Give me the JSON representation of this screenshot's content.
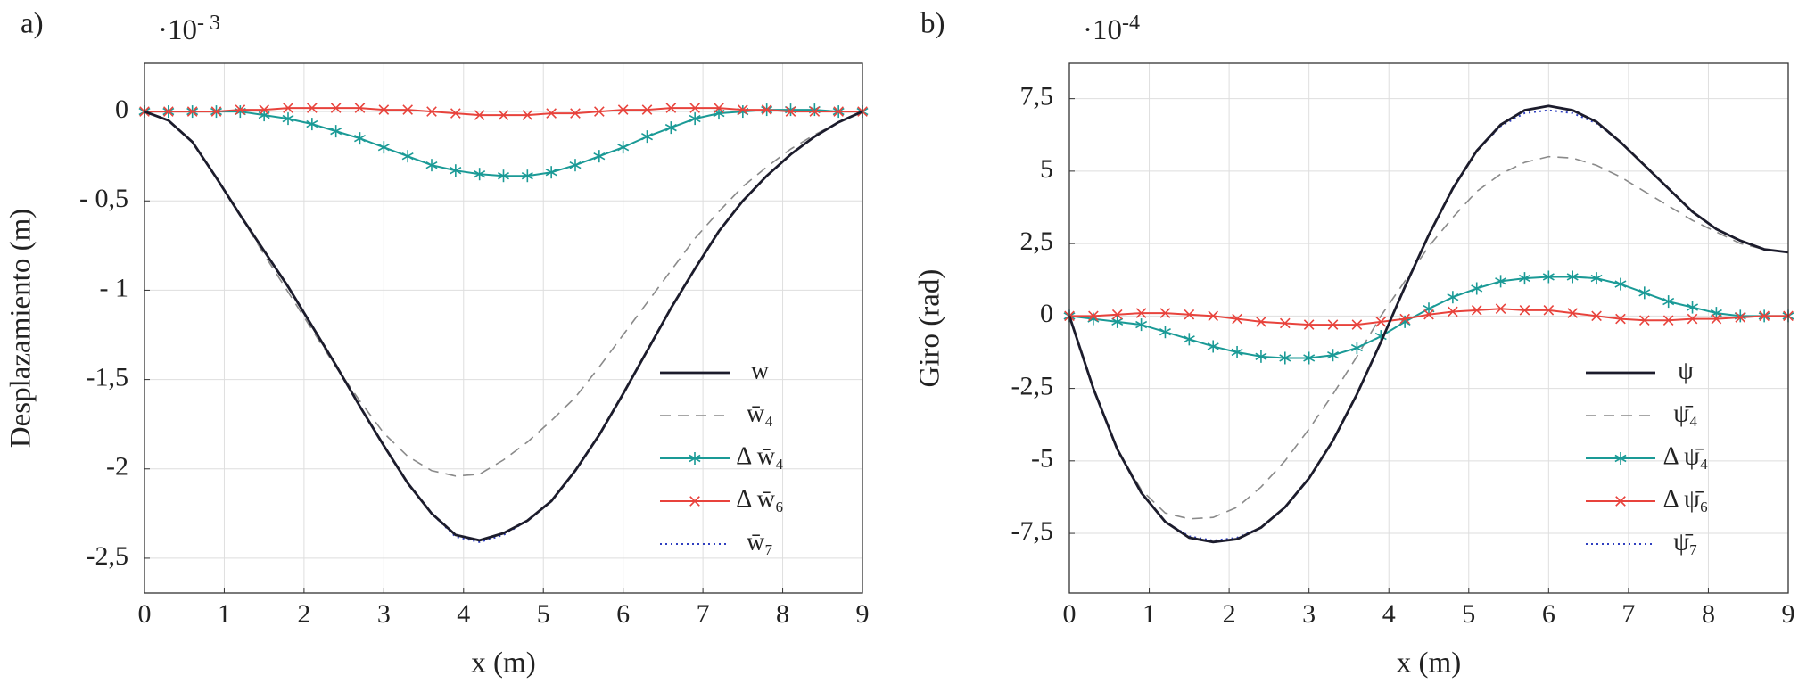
{
  "chart_data": [
    {
      "type": "line",
      "panel_label": "a)",
      "exponent": {
        "base": "·10",
        "power": "- 3"
      },
      "xlabel": "x (m)",
      "ylabel": "Desplazamiento (m)",
      "x": [
        0,
        0.3,
        0.6,
        0.9,
        1.2,
        1.5,
        1.8,
        2.1,
        2.4,
        2.7,
        3.0,
        3.3,
        3.6,
        3.9,
        4.2,
        4.5,
        4.8,
        5.1,
        5.4,
        5.7,
        6.0,
        6.3,
        6.6,
        6.9,
        7.2,
        7.5,
        7.8,
        8.1,
        8.4,
        8.7,
        9.0
      ],
      "xlim": [
        0,
        9
      ],
      "xticks": [
        0,
        1,
        2,
        3,
        4,
        5,
        6,
        7,
        8,
        9
      ],
      "ylim": [
        -2.695,
        0.27
      ],
      "yticks": [
        0,
        {
          "value": -0.5,
          "label": "- 0,5"
        },
        {
          "value": -1,
          "label": "- 1"
        },
        {
          "value": -1.5,
          "label": "-1,5"
        },
        {
          "value": -2,
          "label": "-2"
        },
        {
          "value": -2.5,
          "label": "-2,5"
        }
      ],
      "grid": true,
      "legend": "lower right",
      "series": [
        {
          "name": "w",
          "color": "#1c1c2c",
          "linestyle": "solid",
          "values": [
            0,
            -0.05,
            -0.17,
            -0.37,
            -0.58,
            -0.78,
            -0.98,
            -1.2,
            -1.42,
            -1.65,
            -1.87,
            -2.08,
            -2.25,
            -2.37,
            -2.4,
            -2.36,
            -2.29,
            -2.18,
            -2.01,
            -1.81,
            -1.58,
            -1.34,
            -1.1,
            -0.88,
            -0.67,
            -0.5,
            -0.36,
            -0.24,
            -0.14,
            -0.06,
            0
          ]
        },
        {
          "name": "w̄₄",
          "color": "#8a8a8a",
          "linestyle": "dashed",
          "values": [
            0,
            -0.05,
            -0.17,
            -0.37,
            -0.58,
            -0.8,
            -1.01,
            -1.22,
            -1.43,
            -1.62,
            -1.8,
            -1.93,
            -2.01,
            -2.04,
            -2.03,
            -1.95,
            -1.85,
            -1.73,
            -1.6,
            -1.43,
            -1.25,
            -1.07,
            -0.89,
            -0.71,
            -0.56,
            -0.42,
            -0.31,
            -0.21,
            -0.13,
            -0.06,
            0
          ]
        },
        {
          "name": "Δ w̄₄",
          "color": "#1a9a96",
          "linestyle": "solid",
          "marker": "asterisk",
          "values": [
            0,
            0,
            0,
            0,
            0,
            -0.02,
            -0.04,
            -0.07,
            -0.11,
            -0.15,
            -0.2,
            -0.25,
            -0.3,
            -0.33,
            -0.35,
            -0.36,
            -0.36,
            -0.34,
            -0.3,
            -0.25,
            -0.2,
            -0.14,
            -0.09,
            -0.04,
            -0.01,
            0,
            0.01,
            0.01,
            0.01,
            0,
            0
          ]
        },
        {
          "name": "Δ w̄₆",
          "color": "#e8433c",
          "linestyle": "solid",
          "marker": "x",
          "values": [
            0,
            0,
            0,
            0,
            0.01,
            0.01,
            0.02,
            0.02,
            0.02,
            0.02,
            0.01,
            0.01,
            0,
            -0.01,
            -0.02,
            -0.02,
            -0.02,
            -0.01,
            -0.01,
            0,
            0.01,
            0.01,
            0.02,
            0.02,
            0.02,
            0.01,
            0.01,
            0,
            0,
            0,
            0
          ]
        },
        {
          "name": "w̄₇",
          "color": "#2f3fbf",
          "linestyle": "dotted",
          "values": [
            0,
            -0.05,
            -0.17,
            -0.37,
            -0.58,
            -0.78,
            -0.98,
            -1.2,
            -1.42,
            -1.65,
            -1.87,
            -2.08,
            -2.25,
            -2.38,
            -2.41,
            -2.37,
            -2.29,
            -2.18,
            -2.01,
            -1.81,
            -1.58,
            -1.34,
            -1.1,
            -0.88,
            -0.67,
            -0.5,
            -0.36,
            -0.24,
            -0.14,
            -0.06,
            0
          ]
        }
      ]
    },
    {
      "type": "line",
      "panel_label": "b)",
      "exponent": {
        "base": "·10",
        "power": "-4"
      },
      "xlabel": "x (m)",
      "ylabel": "Giro (rad)",
      "x": [
        0,
        0.3,
        0.6,
        0.9,
        1.2,
        1.5,
        1.8,
        2.1,
        2.4,
        2.7,
        3.0,
        3.3,
        3.6,
        3.9,
        4.2,
        4.5,
        4.8,
        5.1,
        5.4,
        5.7,
        6.0,
        6.3,
        6.6,
        6.9,
        7.2,
        7.5,
        7.8,
        8.1,
        8.4,
        8.7,
        9.0
      ],
      "xlim": [
        0,
        9
      ],
      "xticks": [
        0,
        1,
        2,
        3,
        4,
        5,
        6,
        7,
        8,
        9
      ],
      "ylim": [
        -9.56,
        8.72
      ],
      "yticks": [
        {
          "value": 7.5,
          "label": "7,5"
        },
        5,
        {
          "value": 2.5,
          "label": "2,5"
        },
        0,
        {
          "value": -2.5,
          "label": "-2,5"
        },
        -5,
        {
          "value": -7.5,
          "label": "-7,5"
        }
      ],
      "grid": true,
      "legend": "lower right",
      "series": [
        {
          "name": "ψ",
          "color": "#1c1c2c",
          "linestyle": "solid",
          "values": [
            0,
            -2.5,
            -4.6,
            -6.1,
            -7.1,
            -7.65,
            -7.8,
            -7.7,
            -7.3,
            -6.6,
            -5.6,
            -4.3,
            -2.7,
            -0.9,
            1.0,
            2.8,
            4.4,
            5.7,
            6.6,
            7.1,
            7.25,
            7.1,
            6.7,
            6.0,
            5.2,
            4.4,
            3.6,
            3.0,
            2.6,
            2.3,
            2.2
          ]
        },
        {
          "name": "ψ̄₄",
          "color": "#8a8a8a",
          "linestyle": "dashed",
          "values": [
            0,
            -2.5,
            -4.6,
            -6.0,
            -6.8,
            -7.0,
            -6.95,
            -6.6,
            -5.9,
            -5.0,
            -3.9,
            -2.7,
            -1.4,
            0.0,
            1.2,
            2.4,
            3.4,
            4.3,
            4.9,
            5.3,
            5.5,
            5.45,
            5.2,
            4.8,
            4.3,
            3.8,
            3.3,
            2.9,
            2.5,
            2.3,
            2.2
          ]
        },
        {
          "name": "Δ ψ̄₄",
          "color": "#1a9a96",
          "linestyle": "solid",
          "marker": "asterisk",
          "values": [
            0,
            -0.1,
            -0.2,
            -0.3,
            -0.55,
            -0.8,
            -1.05,
            -1.25,
            -1.4,
            -1.45,
            -1.45,
            -1.35,
            -1.1,
            -0.7,
            -0.2,
            0.25,
            0.65,
            0.95,
            1.2,
            1.3,
            1.35,
            1.35,
            1.3,
            1.1,
            0.8,
            0.5,
            0.3,
            0.1,
            0,
            0,
            0
          ]
        },
        {
          "name": "Δ ψ̄₆",
          "color": "#e8433c",
          "linestyle": "solid",
          "marker": "x",
          "values": [
            0,
            0,
            0.05,
            0.1,
            0.1,
            0.05,
            0,
            -0.1,
            -0.2,
            -0.25,
            -0.3,
            -0.3,
            -0.3,
            -0.2,
            -0.1,
            0.05,
            0.15,
            0.2,
            0.25,
            0.2,
            0.2,
            0.1,
            0,
            -0.1,
            -0.15,
            -0.15,
            -0.1,
            -0.1,
            -0.05,
            0,
            0
          ]
        },
        {
          "name": "ψ̄₇",
          "color": "#2f3fbf",
          "linestyle": "dotted",
          "values": [
            0,
            -2.5,
            -4.6,
            -6.1,
            -7.1,
            -7.6,
            -7.75,
            -7.65,
            -7.3,
            -6.6,
            -5.6,
            -4.3,
            -2.7,
            -0.9,
            1.0,
            2.8,
            4.4,
            5.7,
            6.55,
            7.0,
            7.1,
            7.0,
            6.65,
            6.0,
            5.2,
            4.4,
            3.6,
            3.0,
            2.6,
            2.3,
            2.2
          ]
        }
      ]
    }
  ]
}
